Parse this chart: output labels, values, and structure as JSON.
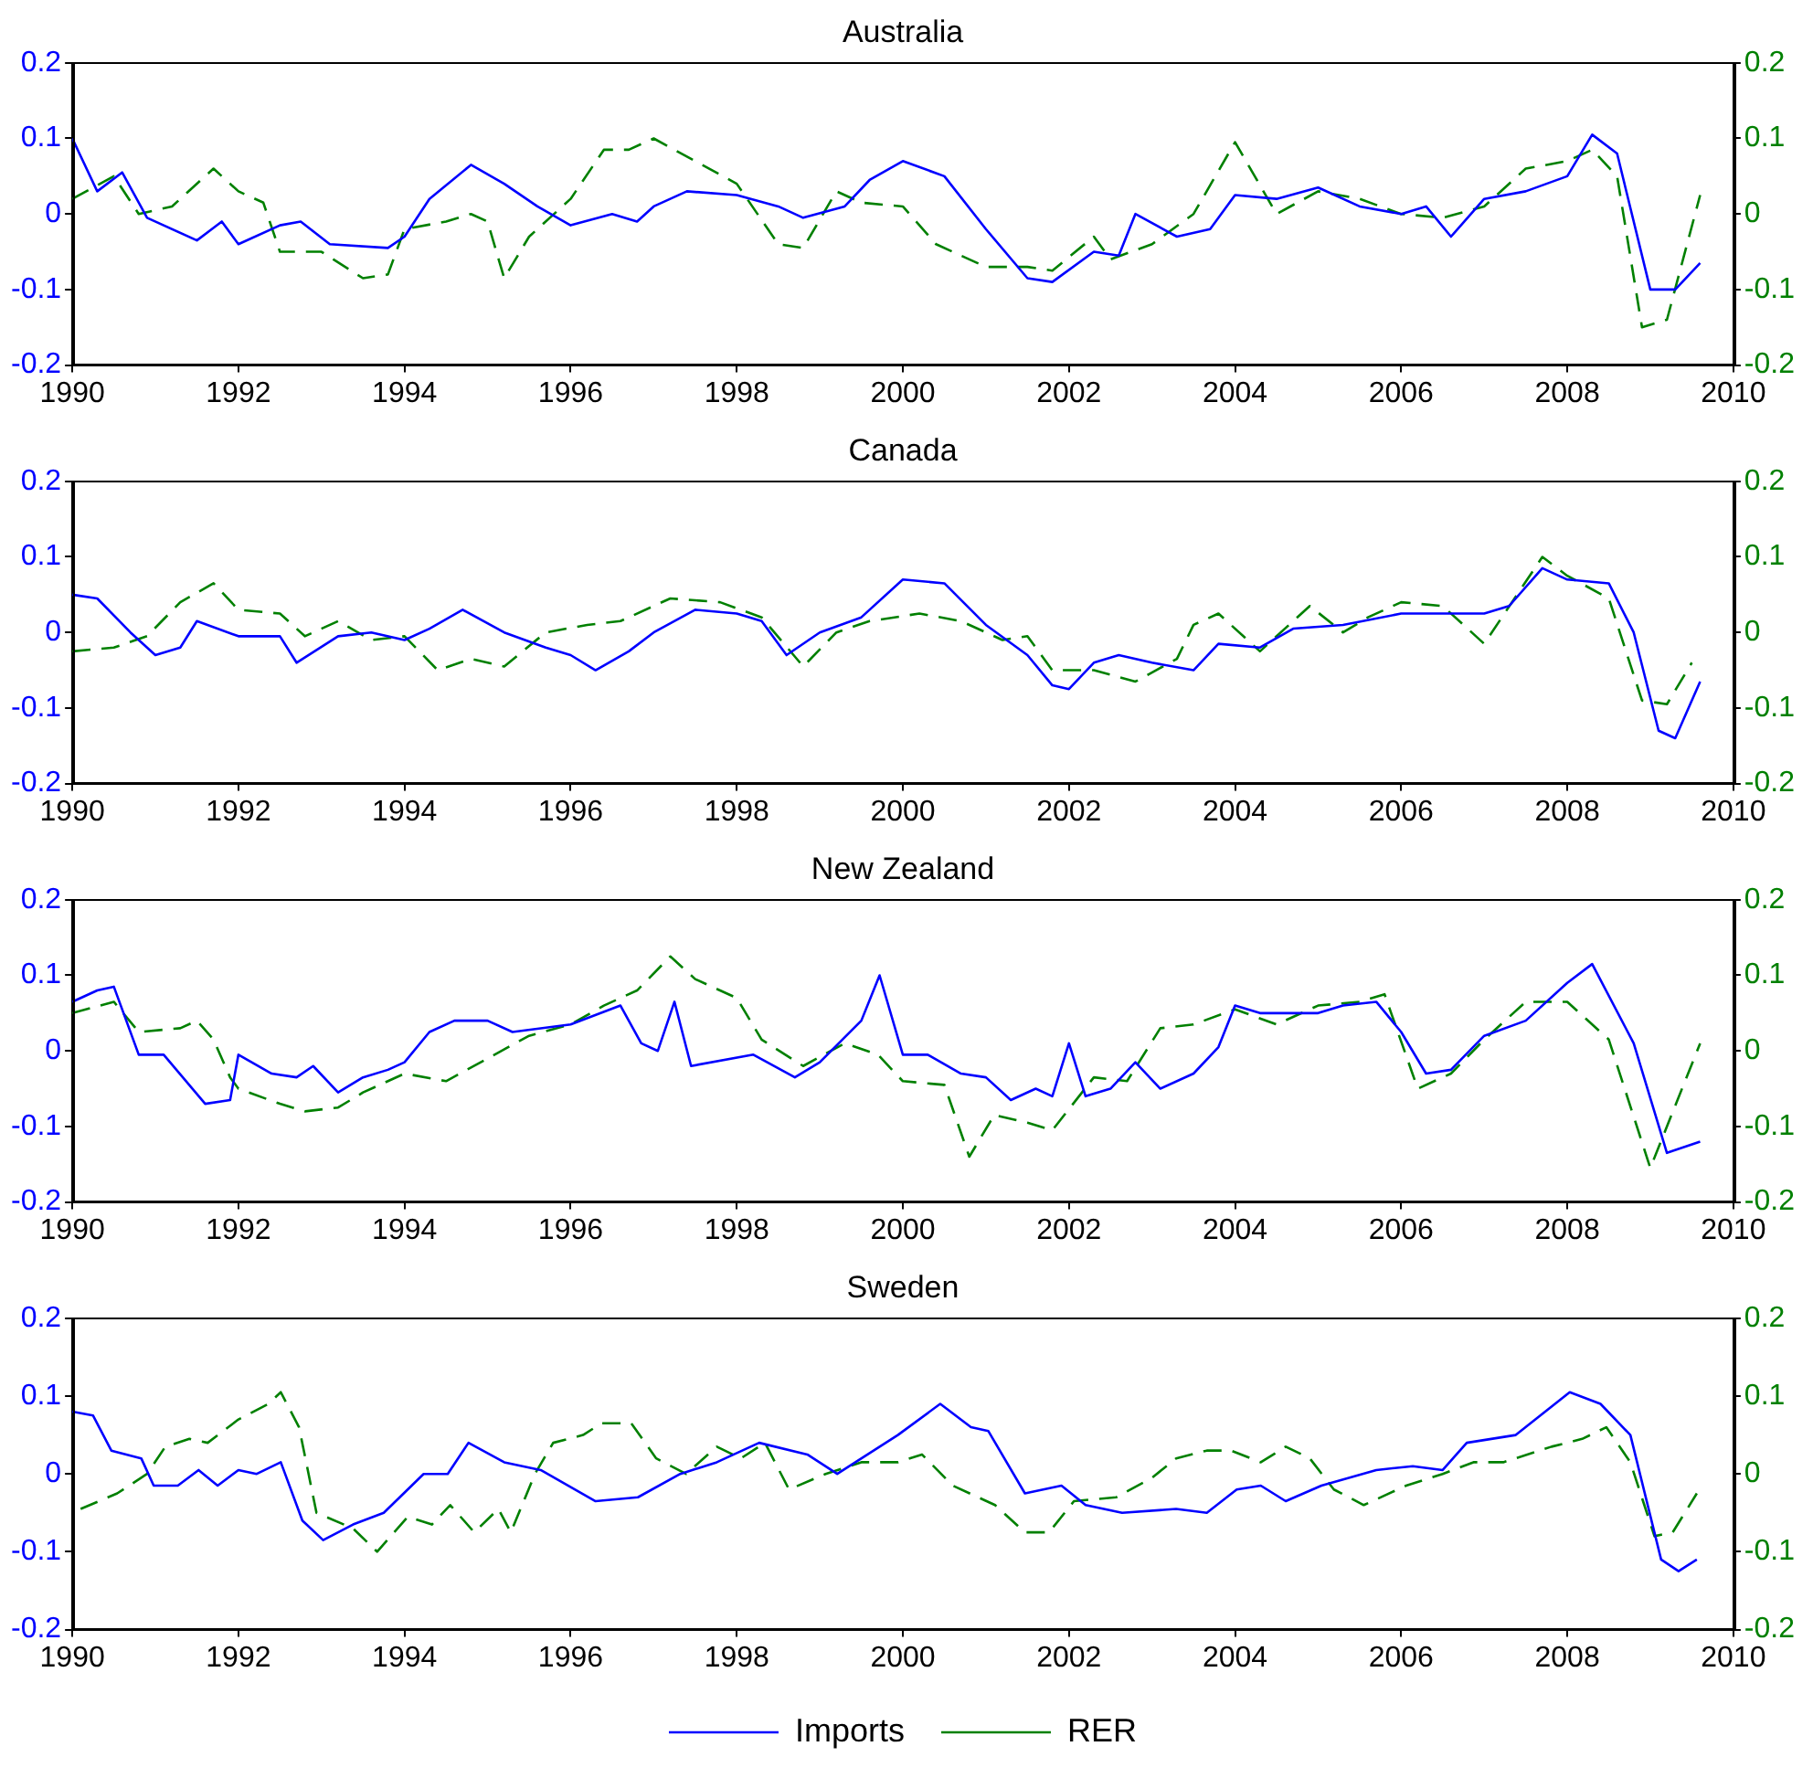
{
  "chart_data": [
    {
      "type": "line",
      "title": "Australia",
      "xlim": [
        1990,
        2010
      ],
      "xticks": [
        1990,
        1992,
        1994,
        1996,
        1998,
        2000,
        2002,
        2004,
        2006,
        2008,
        2010
      ],
      "ylim": [
        -0.2,
        0.2
      ],
      "yticks": [
        -0.2,
        -0.1,
        0,
        0.1,
        0.2
      ],
      "y2lim": [
        -0.2,
        0.2
      ],
      "y2ticks": [
        -0.2,
        -0.1,
        0,
        0.1,
        0.2
      ],
      "grid": false,
      "legend": false,
      "marker": "none",
      "series": [
        {
          "color": "#0000ff",
          "line_style": "solid",
          "x": [
            1990.0,
            1990.3,
            1990.6,
            1990.9,
            1991.5,
            1991.8,
            1992.0,
            1992.5,
            1992.75,
            1993.1,
            1993.8,
            1994.0,
            1994.3,
            1994.8,
            1995.2,
            1995.6,
            1996.0,
            1996.5,
            1996.8,
            1997.0,
            1997.4,
            1998.0,
            1998.5,
            1998.8,
            1999.3,
            1999.6,
            2000.0,
            2000.5,
            2001.0,
            2001.5,
            2001.8,
            2002.3,
            2002.6,
            2002.8,
            2003.3,
            2003.7,
            2004.0,
            2004.5,
            2005.0,
            2005.5,
            2006.0,
            2006.3,
            2006.6,
            2007.0,
            2007.5,
            2008.0,
            2008.3,
            2008.6,
            2009.0,
            2009.3,
            2009.6
          ],
          "values": [
            0.1,
            0.03,
            0.055,
            -0.005,
            -0.035,
            -0.01,
            -0.04,
            -0.015,
            -0.01,
            -0.04,
            -0.045,
            -0.03,
            0.02,
            0.065,
            0.04,
            0.01,
            -0.015,
            0.0,
            -0.01,
            0.01,
            0.03,
            0.025,
            0.01,
            -0.005,
            0.01,
            0.045,
            0.07,
            0.05,
            -0.02,
            -0.085,
            -0.09,
            -0.05,
            -0.055,
            0.0,
            -0.03,
            -0.02,
            0.025,
            0.02,
            0.035,
            0.01,
            0.0,
            0.01,
            -0.03,
            0.02,
            0.03,
            0.05,
            0.105,
            0.08,
            -0.1,
            -0.1,
            -0.065
          ]
        },
        {
          "color": "#008000",
          "line_style": "dashed",
          "axis": "y2",
          "x": [
            1990.0,
            1990.5,
            1990.8,
            1991.2,
            1991.7,
            1992.0,
            1992.3,
            1992.5,
            1993.0,
            1993.5,
            1993.8,
            1994.0,
            1994.5,
            1994.8,
            1995.0,
            1995.2,
            1995.5,
            1996.0,
            1996.4,
            1996.7,
            1997.0,
            1997.5,
            1998.0,
            1998.5,
            1998.8,
            1999.2,
            1999.5,
            2000.0,
            2000.4,
            2001.0,
            2001.5,
            2001.8,
            2002.3,
            2002.5,
            2003.0,
            2003.5,
            2004.0,
            2004.5,
            2005.0,
            2005.5,
            2006.0,
            2006.5,
            2007.0,
            2007.5,
            2008.0,
            2008.3,
            2008.6,
            2008.9,
            2009.2,
            2009.6
          ],
          "values": [
            0.02,
            0.05,
            0.0,
            0.01,
            0.06,
            0.03,
            0.015,
            -0.05,
            -0.05,
            -0.085,
            -0.08,
            -0.02,
            -0.01,
            0.0,
            -0.01,
            -0.085,
            -0.03,
            0.02,
            0.085,
            0.085,
            0.1,
            0.07,
            0.04,
            -0.04,
            -0.045,
            0.03,
            0.015,
            0.01,
            -0.04,
            -0.07,
            -0.07,
            -0.075,
            -0.03,
            -0.06,
            -0.04,
            0.0,
            0.095,
            0.0,
            0.03,
            0.02,
            0.0,
            -0.005,
            0.01,
            0.06,
            0.07,
            0.085,
            0.05,
            -0.15,
            -0.14,
            0.025
          ]
        }
      ]
    },
    {
      "type": "line",
      "title": "Canada",
      "xlim": [
        1990,
        2010
      ],
      "xticks": [
        1990,
        1992,
        1994,
        1996,
        1998,
        2000,
        2002,
        2004,
        2006,
        2008,
        2010
      ],
      "ylim": [
        -0.2,
        0.2
      ],
      "yticks": [
        -0.2,
        -0.1,
        0,
        0.1,
        0.2
      ],
      "y2lim": [
        -0.2,
        0.2
      ],
      "y2ticks": [
        -0.2,
        -0.1,
        0,
        0.1,
        0.2
      ],
      "grid": false,
      "legend": false,
      "marker": "none",
      "series": [
        {
          "color": "#0000ff",
          "line_style": "solid",
          "x": [
            1990.0,
            1990.3,
            1990.7,
            1991.0,
            1991.3,
            1991.5,
            1992.0,
            1992.5,
            1992.7,
            1993.2,
            1993.6,
            1994.0,
            1994.3,
            1994.7,
            1995.2,
            1995.7,
            1996.0,
            1996.3,
            1996.7,
            1997.0,
            1997.5,
            1998.0,
            1998.3,
            1998.6,
            1999.0,
            1999.5,
            2000.0,
            2000.5,
            2001.0,
            2001.5,
            2001.8,
            2002.0,
            2002.3,
            2002.6,
            2003.0,
            2003.5,
            2003.8,
            2004.3,
            2004.7,
            2005.3,
            2006.0,
            2006.5,
            2007.0,
            2007.3,
            2007.7,
            2008.0,
            2008.5,
            2008.8,
            2009.1,
            2009.3,
            2009.6
          ],
          "values": [
            0.05,
            0.045,
            0.0,
            -0.03,
            -0.02,
            0.015,
            -0.005,
            -0.005,
            -0.04,
            -0.005,
            0.0,
            -0.01,
            0.005,
            0.03,
            0.0,
            -0.02,
            -0.03,
            -0.05,
            -0.025,
            0.0,
            0.03,
            0.025,
            0.015,
            -0.03,
            0.0,
            0.02,
            0.07,
            0.065,
            0.01,
            -0.03,
            -0.07,
            -0.075,
            -0.04,
            -0.03,
            -0.04,
            -0.05,
            -0.015,
            -0.02,
            0.005,
            0.01,
            0.025,
            0.025,
            0.025,
            0.035,
            0.085,
            0.07,
            0.065,
            0.0,
            -0.13,
            -0.14,
            -0.065
          ]
        },
        {
          "color": "#008000",
          "line_style": "dashed",
          "axis": "y2",
          "x": [
            1990.0,
            1990.5,
            1990.9,
            1991.3,
            1991.7,
            1992.0,
            1992.5,
            1992.8,
            1993.2,
            1993.6,
            1994.0,
            1994.4,
            1994.8,
            1995.2,
            1995.7,
            1996.2,
            1996.6,
            1997.2,
            1997.8,
            1998.3,
            1998.8,
            1999.2,
            1999.6,
            2000.2,
            2000.7,
            2001.2,
            2001.5,
            2001.8,
            2002.3,
            2002.8,
            2003.3,
            2003.5,
            2003.8,
            2004.3,
            2004.9,
            2005.3,
            2005.6,
            2006.0,
            2006.5,
            2007.0,
            2007.7,
            2008.0,
            2008.5,
            2008.9,
            2009.2,
            2009.5
          ],
          "values": [
            -0.025,
            -0.02,
            -0.005,
            0.04,
            0.065,
            0.03,
            0.025,
            -0.005,
            0.015,
            -0.01,
            -0.005,
            -0.05,
            -0.035,
            -0.045,
            0.0,
            0.01,
            0.015,
            0.045,
            0.04,
            0.02,
            -0.045,
            0.0,
            0.015,
            0.025,
            0.015,
            -0.01,
            -0.005,
            -0.05,
            -0.05,
            -0.065,
            -0.035,
            0.01,
            0.025,
            -0.025,
            0.035,
            0.0,
            0.02,
            0.04,
            0.035,
            -0.015,
            0.1,
            0.075,
            0.045,
            -0.09,
            -0.095,
            -0.04
          ]
        }
      ]
    },
    {
      "type": "line",
      "title": "New Zealand",
      "xlim": [
        1990,
        2010
      ],
      "xticks": [
        1990,
        1992,
        1994,
        1996,
        1998,
        2000,
        2002,
        2004,
        2006,
        2008,
        2010
      ],
      "ylim": [
        -0.2,
        0.2
      ],
      "yticks": [
        -0.2,
        -0.1,
        0,
        0.1,
        0.2
      ],
      "y2lim": [
        -0.2,
        0.2
      ],
      "y2ticks": [
        -0.2,
        -0.1,
        0,
        0.1,
        0.2
      ],
      "grid": false,
      "legend": false,
      "marker": "none",
      "series": [
        {
          "color": "#0000ff",
          "line_style": "solid",
          "x": [
            1990.0,
            1990.3,
            1990.5,
            1990.8,
            1991.1,
            1991.6,
            1991.9,
            1992.0,
            1992.4,
            1992.7,
            1992.9,
            1993.2,
            1993.5,
            1993.8,
            1994.0,
            1994.3,
            1994.6,
            1995.0,
            1995.3,
            1996.0,
            1996.6,
            1996.85,
            1997.05,
            1997.25,
            1997.45,
            1998.2,
            1998.7,
            1999.0,
            1999.5,
            1999.72,
            2000.0,
            2000.3,
            2000.7,
            2001.0,
            2001.3,
            2001.6,
            2001.8,
            2002.0,
            2002.2,
            2002.5,
            2002.8,
            2003.1,
            2003.5,
            2003.8,
            2004.0,
            2004.3,
            2004.7,
            2005.0,
            2005.3,
            2005.7,
            2006.0,
            2006.3,
            2006.6,
            2007.0,
            2007.5,
            2008.0,
            2008.3,
            2008.8,
            2009.2,
            2009.6
          ],
          "values": [
            0.065,
            0.08,
            0.085,
            -0.005,
            -0.005,
            -0.07,
            -0.065,
            -0.005,
            -0.03,
            -0.035,
            -0.02,
            -0.055,
            -0.035,
            -0.025,
            -0.015,
            0.025,
            0.04,
            0.04,
            0.025,
            0.035,
            0.06,
            0.01,
            0.0,
            0.065,
            -0.02,
            -0.005,
            -0.035,
            -0.015,
            0.04,
            0.1,
            -0.005,
            -0.005,
            -0.03,
            -0.035,
            -0.065,
            -0.05,
            -0.06,
            0.01,
            -0.06,
            -0.05,
            -0.015,
            -0.05,
            -0.03,
            0.005,
            0.06,
            0.05,
            0.05,
            0.05,
            0.06,
            0.065,
            0.025,
            -0.03,
            -0.025,
            0.02,
            0.04,
            0.09,
            0.115,
            0.01,
            -0.135,
            -0.12
          ]
        },
        {
          "color": "#008000",
          "line_style": "dashed",
          "axis": "y2",
          "x": [
            1990.0,
            1990.5,
            1990.8,
            1991.3,
            1991.5,
            1991.7,
            1991.9,
            1992.0,
            1992.5,
            1992.8,
            1993.2,
            1993.5,
            1994.0,
            1994.5,
            1995.0,
            1995.5,
            1996.0,
            1996.4,
            1996.8,
            1997.2,
            1997.5,
            1998.0,
            1998.3,
            1998.8,
            1999.3,
            1999.7,
            2000.0,
            2000.5,
            2000.8,
            2001.1,
            2001.5,
            2001.8,
            2002.3,
            2002.7,
            2003.1,
            2003.5,
            2004.0,
            2004.5,
            2005.0,
            2005.5,
            2005.8,
            2006.2,
            2006.6,
            2007.0,
            2007.5,
            2008.0,
            2008.5,
            2009.0,
            2009.6
          ],
          "values": [
            0.05,
            0.065,
            0.025,
            0.03,
            0.04,
            0.015,
            -0.035,
            -0.05,
            -0.07,
            -0.08,
            -0.075,
            -0.055,
            -0.03,
            -0.04,
            -0.01,
            0.02,
            0.035,
            0.06,
            0.08,
            0.125,
            0.095,
            0.07,
            0.015,
            -0.02,
            0.01,
            -0.005,
            -0.04,
            -0.045,
            -0.14,
            -0.085,
            -0.095,
            -0.105,
            -0.035,
            -0.04,
            0.03,
            0.035,
            0.055,
            0.035,
            0.06,
            0.065,
            0.075,
            -0.05,
            -0.03,
            0.015,
            0.065,
            0.065,
            0.015,
            -0.155,
            0.01
          ]
        }
      ]
    },
    {
      "type": "line",
      "title": "Sweden",
      "xlim": [
        1990,
        2010
      ],
      "xticks": [
        1990,
        1992,
        1994,
        1996,
        1998,
        2000,
        2002,
        2004,
        2006,
        2008,
        2010
      ],
      "ylim": [
        -0.2,
        0.2
      ],
      "yticks": [
        -0.2,
        -0.1,
        0,
        0.1,
        0.2
      ],
      "y2lim": [
        -0.2,
        0.2
      ],
      "y2ticks": [
        -0.2,
        -0.1,
        0,
        0.1,
        0.2
      ],
      "grid": false,
      "legend": "bottom",
      "marker": "none",
      "series": [
        {
          "name": "Imports",
          "color": "#0000ff",
          "line_style": "solid",
          "x": [
            1990.0,
            1990.25,
            1990.47,
            1990.83,
            1990.98,
            1991.27,
            1991.52,
            1991.75,
            1992.0,
            1992.22,
            1992.51,
            1992.77,
            1993.02,
            1993.38,
            1993.75,
            1994.23,
            1994.52,
            1994.77,
            1995.2,
            1995.64,
            1996.3,
            1996.81,
            1997.32,
            1997.76,
            1998.27,
            1998.85,
            1999.21,
            1999.94,
            2000.45,
            2000.82,
            2001.03,
            2001.47,
            2001.91,
            2002.2,
            2002.64,
            2003.29,
            2003.66,
            2004.02,
            2004.31,
            2004.61,
            2005.04,
            2005.7,
            2006.14,
            2006.5,
            2006.79,
            2007.38,
            2008.03,
            2008.4,
            2008.76,
            2009.13,
            2009.34,
            2009.56
          ],
          "values": [
            0.08,
            0.075,
            0.03,
            0.02,
            -0.015,
            -0.015,
            0.005,
            -0.015,
            0.005,
            0.0,
            0.015,
            -0.06,
            -0.085,
            -0.065,
            -0.05,
            0.0,
            0.0,
            0.04,
            0.015,
            0.005,
            -0.035,
            -0.03,
            0.0,
            0.015,
            0.04,
            0.025,
            0.0,
            0.05,
            0.09,
            0.06,
            0.055,
            -0.025,
            -0.015,
            -0.04,
            -0.05,
            -0.045,
            -0.05,
            -0.02,
            -0.015,
            -0.035,
            -0.015,
            0.005,
            0.01,
            0.005,
            0.04,
            0.05,
            0.105,
            0.09,
            0.05,
            -0.11,
            -0.125,
            -0.11
          ]
        },
        {
          "name": "RER",
          "color": "#008000",
          "line_style": "dashed",
          "axis": "y2",
          "x": [
            1990.1,
            1990.54,
            1990.9,
            1991.12,
            1991.41,
            1991.63,
            1992.0,
            1992.36,
            1992.51,
            1992.73,
            1992.94,
            1993.38,
            1993.67,
            1994.04,
            1994.33,
            1994.55,
            1994.84,
            1995.13,
            1995.28,
            1995.57,
            1995.79,
            1996.15,
            1996.37,
            1996.73,
            1997.03,
            1997.39,
            1997.76,
            1998.05,
            1998.34,
            1998.63,
            1999.07,
            1999.5,
            1999.94,
            2000.23,
            2000.6,
            2001.11,
            2001.47,
            2001.76,
            2002.06,
            2002.57,
            2003.0,
            2003.29,
            2003.66,
            2003.95,
            2004.31,
            2004.61,
            2004.9,
            2005.19,
            2005.55,
            2006.06,
            2006.5,
            2006.87,
            2007.23,
            2007.81,
            2008.18,
            2008.47,
            2008.76,
            2009.05,
            2009.27,
            2009.56
          ],
          "values": [
            -0.045,
            -0.025,
            0.0,
            0.035,
            0.045,
            0.04,
            0.07,
            0.09,
            0.105,
            0.06,
            -0.05,
            -0.07,
            -0.1,
            -0.055,
            -0.065,
            -0.04,
            -0.075,
            -0.045,
            -0.075,
            0.0,
            0.04,
            0.05,
            0.065,
            0.065,
            0.02,
            0.0,
            0.035,
            0.02,
            0.04,
            -0.02,
            0.0,
            0.015,
            0.015,
            0.025,
            -0.015,
            -0.04,
            -0.075,
            -0.075,
            -0.035,
            -0.03,
            -0.005,
            0.02,
            0.03,
            0.03,
            0.015,
            0.035,
            0.02,
            -0.02,
            -0.04,
            -0.015,
            0.0,
            0.015,
            0.015,
            0.035,
            0.045,
            0.06,
            0.015,
            -0.08,
            -0.075,
            -0.025
          ]
        }
      ]
    }
  ]
}
